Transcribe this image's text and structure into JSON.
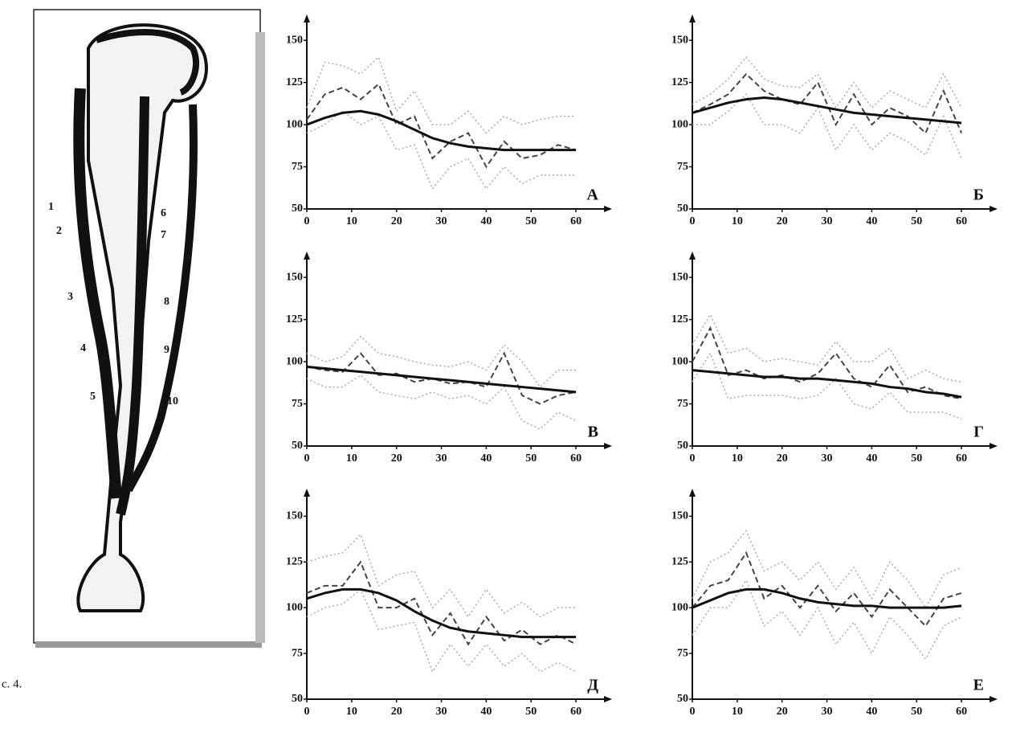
{
  "figure": {
    "caption": "с. 4.",
    "markers": [
      "1",
      "2",
      "3",
      "4",
      "5",
      "6",
      "7",
      "8",
      "9",
      "10"
    ]
  },
  "chart_data": [
    {
      "type": "line",
      "panel": "А",
      "x": [
        0,
        4,
        8,
        12,
        16,
        20,
        24,
        28,
        32,
        36,
        40,
        44,
        48,
        52,
        56,
        60
      ],
      "xlim": [
        0,
        65
      ],
      "xticks": [
        0,
        10,
        20,
        30,
        40,
        50,
        60
      ],
      "ylim": [
        50,
        162
      ],
      "yticks": [
        50,
        75,
        100,
        125,
        150
      ],
      "series": [
        {
          "color": "#aaaaaa",
          "line_style": "dotted",
          "values": [
            110,
            137,
            135,
            130,
            140,
            108,
            120,
            100,
            100,
            108,
            95,
            105,
            100,
            103,
            105,
            105
          ]
        },
        {
          "color": "#444444",
          "line_style": "dashed",
          "values": [
            103,
            118,
            122,
            115,
            124,
            100,
            105,
            80,
            90,
            95,
            75,
            90,
            80,
            82,
            88,
            85
          ]
        },
        {
          "color": "#aaaaaa",
          "line_style": "dotted",
          "values": [
            95,
            100,
            108,
            100,
            105,
            85,
            88,
            62,
            75,
            80,
            62,
            75,
            65,
            70,
            70,
            70
          ]
        },
        {
          "color": "#111111",
          "line_style": "solid",
          "values": [
            100,
            104,
            107,
            108,
            106,
            102,
            97,
            92,
            89,
            87,
            86,
            85,
            85,
            85,
            85,
            85
          ]
        }
      ]
    },
    {
      "type": "line",
      "panel": "Б",
      "x": [
        0,
        4,
        8,
        12,
        16,
        20,
        24,
        28,
        32,
        36,
        40,
        44,
        48,
        52,
        56,
        60
      ],
      "xlim": [
        0,
        65
      ],
      "xticks": [
        0,
        10,
        20,
        30,
        40,
        50,
        60
      ],
      "ylim": [
        50,
        162
      ],
      "yticks": [
        50,
        75,
        100,
        125,
        150
      ],
      "series": [
        {
          "color": "#aaaaaa",
          "line_style": "dotted",
          "values": [
            112,
            118,
            127,
            140,
            127,
            123,
            122,
            130,
            110,
            125,
            110,
            120,
            115,
            110,
            130,
            110
          ]
        },
        {
          "color": "#444444",
          "line_style": "dashed",
          "values": [
            107,
            112,
            118,
            130,
            120,
            115,
            112,
            125,
            100,
            118,
            100,
            110,
            105,
            95,
            120,
            95
          ]
        },
        {
          "color": "#aaaaaa",
          "line_style": "dotted",
          "values": [
            100,
            100,
            108,
            118,
            100,
            100,
            95,
            110,
            85,
            100,
            85,
            95,
            90,
            82,
            105,
            80
          ]
        },
        {
          "color": "#111111",
          "line_style": "solid",
          "values": [
            107,
            110,
            113,
            115,
            116,
            115,
            113,
            111,
            109,
            107,
            106,
            105,
            104,
            103,
            102,
            101
          ]
        }
      ]
    },
    {
      "type": "line",
      "panel": "В",
      "x": [
        0,
        4,
        8,
        12,
        16,
        20,
        24,
        28,
        32,
        36,
        40,
        44,
        48,
        52,
        56,
        60
      ],
      "xlim": [
        0,
        65
      ],
      "xticks": [
        0,
        10,
        20,
        30,
        40,
        50,
        60
      ],
      "ylim": [
        50,
        162
      ],
      "yticks": [
        50,
        75,
        100,
        125,
        150
      ],
      "series": [
        {
          "color": "#aaaaaa",
          "line_style": "dotted",
          "values": [
            105,
            100,
            103,
            115,
            105,
            103,
            100,
            98,
            97,
            100,
            95,
            110,
            100,
            85,
            95,
            95
          ]
        },
        {
          "color": "#444444",
          "line_style": "dashed",
          "values": [
            97,
            95,
            94,
            105,
            92,
            93,
            88,
            90,
            87,
            88,
            85,
            105,
            80,
            75,
            80,
            82
          ]
        },
        {
          "color": "#aaaaaa",
          "line_style": "dotted",
          "values": [
            90,
            85,
            85,
            92,
            82,
            80,
            78,
            82,
            78,
            80,
            75,
            85,
            65,
            60,
            70,
            65
          ]
        },
        {
          "color": "#111111",
          "line_style": "solid",
          "values": [
            97,
            96,
            95,
            94,
            93,
            92,
            91,
            90,
            89,
            88,
            87,
            86,
            85,
            84,
            83,
            82
          ]
        }
      ]
    },
    {
      "type": "line",
      "panel": "Г",
      "x": [
        0,
        4,
        8,
        12,
        16,
        20,
        24,
        28,
        32,
        36,
        40,
        44,
        48,
        52,
        56,
        60
      ],
      "xlim": [
        0,
        65
      ],
      "xticks": [
        0,
        10,
        20,
        30,
        40,
        50,
        60
      ],
      "ylim": [
        50,
        162
      ],
      "yticks": [
        50,
        75,
        100,
        125,
        150
      ],
      "series": [
        {
          "color": "#aaaaaa",
          "line_style": "dotted",
          "values": [
            110,
            128,
            105,
            108,
            100,
            102,
            100,
            98,
            112,
            100,
            100,
            108,
            90,
            95,
            90,
            88
          ]
        },
        {
          "color": "#444444",
          "line_style": "dashed",
          "values": [
            100,
            120,
            92,
            95,
            90,
            92,
            88,
            93,
            105,
            90,
            85,
            98,
            82,
            85,
            80,
            78
          ]
        },
        {
          "color": "#aaaaaa",
          "line_style": "dotted",
          "values": [
            88,
            105,
            78,
            80,
            80,
            80,
            78,
            80,
            90,
            75,
            72,
            82,
            70,
            70,
            70,
            66
          ]
        },
        {
          "color": "#111111",
          "line_style": "solid",
          "values": [
            95,
            94,
            93,
            92,
            91,
            91,
            90,
            90,
            89,
            88,
            87,
            85,
            84,
            82,
            81,
            79
          ]
        }
      ]
    },
    {
      "type": "line",
      "panel": "Д",
      "x": [
        0,
        4,
        8,
        12,
        16,
        20,
        24,
        28,
        32,
        36,
        40,
        44,
        48,
        52,
        56,
        60
      ],
      "xlim": [
        0,
        65
      ],
      "xticks": [
        0,
        10,
        20,
        30,
        40,
        50,
        60
      ],
      "ylim": [
        50,
        162
      ],
      "yticks": [
        50,
        75,
        100,
        125,
        150
      ],
      "series": [
        {
          "color": "#aaaaaa",
          "line_style": "dotted",
          "values": [
            125,
            128,
            130,
            140,
            112,
            118,
            120,
            100,
            110,
            95,
            110,
            97,
            103,
            95,
            100,
            100
          ]
        },
        {
          "color": "#444444",
          "line_style": "dashed",
          "values": [
            108,
            112,
            112,
            125,
            100,
            100,
            105,
            85,
            97,
            80,
            95,
            82,
            88,
            80,
            85,
            80
          ]
        },
        {
          "color": "#aaaaaa",
          "line_style": "dotted",
          "values": [
            95,
            100,
            102,
            110,
            88,
            90,
            92,
            65,
            80,
            68,
            80,
            68,
            75,
            65,
            70,
            65
          ]
        },
        {
          "color": "#111111",
          "line_style": "solid",
          "values": [
            105,
            108,
            110,
            110,
            108,
            104,
            98,
            93,
            89,
            87,
            86,
            85,
            84,
            84,
            84,
            84
          ]
        }
      ]
    },
    {
      "type": "line",
      "panel": "Е",
      "x": [
        0,
        4,
        8,
        12,
        16,
        20,
        24,
        28,
        32,
        36,
        40,
        44,
        48,
        52,
        56,
        60
      ],
      "xlim": [
        0,
        65
      ],
      "xticks": [
        0,
        10,
        20,
        30,
        40,
        50,
        60
      ],
      "ylim": [
        50,
        162
      ],
      "yticks": [
        50,
        75,
        100,
        125,
        150
      ],
      "series": [
        {
          "color": "#aaaaaa",
          "line_style": "dotted",
          "values": [
            105,
            125,
            130,
            142,
            120,
            125,
            115,
            125,
            110,
            122,
            105,
            125,
            115,
            100,
            118,
            122
          ]
        },
        {
          "color": "#444444",
          "line_style": "dashed",
          "values": [
            100,
            112,
            115,
            130,
            105,
            112,
            100,
            112,
            98,
            108,
            95,
            110,
            100,
            90,
            105,
            108
          ]
        },
        {
          "color": "#aaaaaa",
          "line_style": "dotted",
          "values": [
            85,
            100,
            100,
            115,
            90,
            98,
            85,
            100,
            80,
            92,
            75,
            95,
            85,
            72,
            90,
            95
          ]
        },
        {
          "color": "#111111",
          "line_style": "solid",
          "values": [
            100,
            104,
            108,
            110,
            110,
            108,
            105,
            103,
            102,
            101,
            101,
            100,
            100,
            100,
            100,
            101
          ]
        }
      ]
    }
  ]
}
